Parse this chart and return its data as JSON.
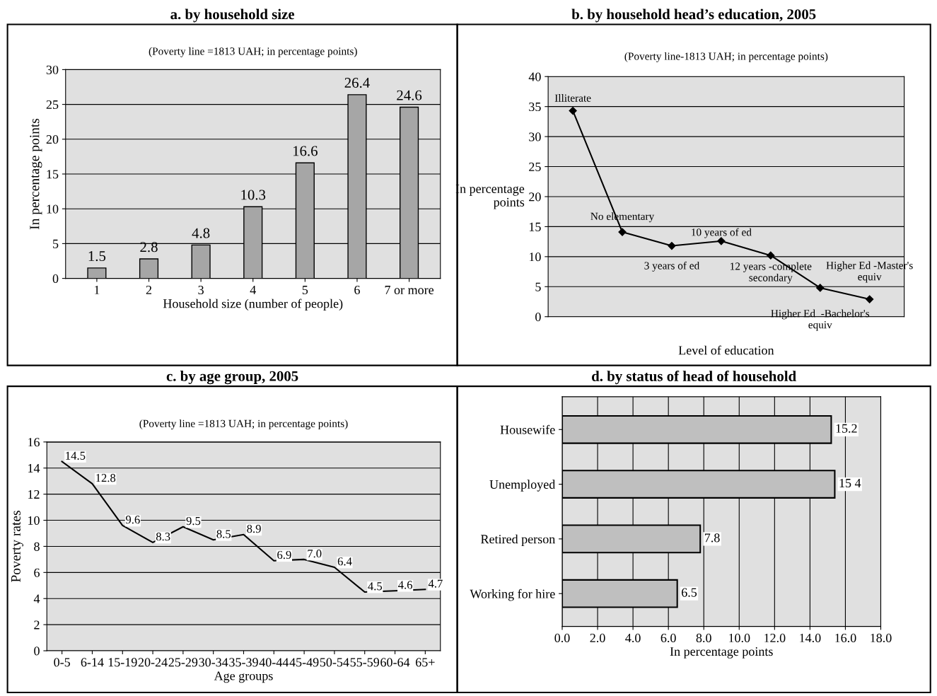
{
  "chart_data": [
    {
      "type": "bar",
      "title": "a. by household size",
      "subtitle": "(Poverty line =1813 UAH; in percentage points)",
      "xlabel": "Household size (number of people)",
      "ylabel": "In percentage points",
      "categories": [
        "1",
        "2",
        "3",
        "4",
        "5",
        "6",
        "7 or more"
      ],
      "values": [
        1.5,
        2.8,
        4.8,
        10.3,
        16.6,
        26.4,
        24.6
      ],
      "color": "#a6a6a6",
      "ylim": [
        0,
        30
      ],
      "yticks": [
        0,
        5,
        10,
        15,
        20,
        25,
        30
      ],
      "grid": "y",
      "data_labels": true
    },
    {
      "type": "line",
      "title": "b. by household head’s education, 2005",
      "subtitle": "(Poverty line-1813 UAH; in percentage points)",
      "xlabel": "Level of education",
      "ylabel": "In percentage\npoints",
      "categories": [
        "Illiterate",
        "No elementary",
        "3 years of ed",
        "10 years of ed",
        "12 years -complete\nsecondary",
        "Higher Ed  -Bachelor's\nequiv",
        "Higher Ed -Master's\nequiv"
      ],
      "values": [
        34.3,
        14.1,
        11.8,
        12.6,
        10.2,
        4.8,
        2.9
      ],
      "color": "#000000",
      "marker": "diamond",
      "ylim": [
        0,
        40
      ],
      "yticks": [
        0,
        5,
        10,
        15,
        20,
        25,
        30,
        35,
        40
      ],
      "grid": "y",
      "tick_labels": "y"
    },
    {
      "type": "line",
      "title": "c. by age group, 2005",
      "subtitle": "(Poverty line =1813 UAH; in percentage points)",
      "xlabel": "Age groups",
      "ylabel": "Poverty rates",
      "categories": [
        "0-5",
        "6-14",
        "15-19",
        "20-24",
        "25-29",
        "30-34",
        "35-39",
        "40-44",
        "45-49",
        "50-54",
        "55-59",
        "60-64",
        "65+"
      ],
      "values": [
        14.5,
        12.8,
        9.6,
        8.3,
        9.5,
        8.5,
        8.9,
        6.9,
        7.0,
        6.4,
        4.5,
        4.6,
        4.7
      ],
      "value_labels": [
        "14.5",
        "12.8",
        "9.6",
        "8.3",
        "9.5",
        "8.5",
        "8.9",
        "6.9",
        "7.0",
        "6.4",
        "4.5",
        "4.6",
        "4.7"
      ],
      "color": "#000000",
      "ylim": [
        0,
        16
      ],
      "yticks": [
        0,
        2,
        4,
        6,
        8,
        10,
        12,
        14,
        16
      ],
      "grid": "y"
    },
    {
      "type": "bar",
      "orientation": "horizontal",
      "title": "d. by status of head of household",
      "xlabel": "In percentage points",
      "categories": [
        "Housewife",
        "Unemployed",
        "Retired person",
        "Working for hire"
      ],
      "values": [
        15.2,
        15.4,
        7.8,
        6.5
      ],
      "value_labels": [
        "15.2",
        "15 4",
        "7.8",
        "6.5"
      ],
      "color": "#bfbfbf",
      "xlim": [
        0,
        18
      ],
      "xticks": [
        {
          "value": 0,
          "label": "0.0"
        },
        {
          "value": 2,
          "label": "2.0"
        },
        {
          "value": 4,
          "label": "4.0"
        },
        {
          "value": 6,
          "label": "6.0"
        },
        {
          "value": 8,
          "label": "8.0"
        },
        {
          "value": 10,
          "label": "10.0"
        },
        {
          "value": 12,
          "label": "12.0"
        },
        {
          "value": 14,
          "label": "14.0"
        },
        {
          "value": 16,
          "label": "16.0"
        },
        {
          "value": 18,
          "label": "18.0"
        }
      ],
      "grid": "x"
    }
  ]
}
